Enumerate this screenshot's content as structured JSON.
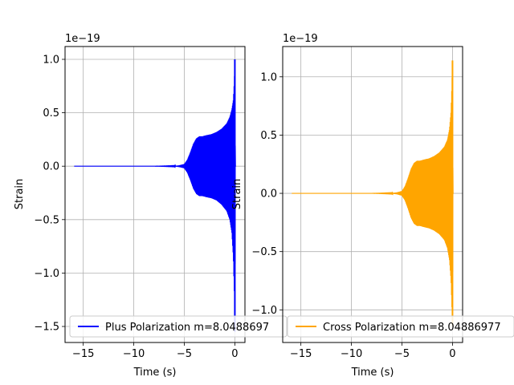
{
  "chart_data": [
    {
      "type": "line",
      "title": "",
      "xlabel": "Time (s)",
      "ylabel": "Strain",
      "offset_text": "1e−19",
      "xlim": [
        -16.8,
        1.0
      ],
      "ylim": [
        -1.65,
        1.12
      ],
      "xticks": [
        -15,
        -10,
        -5,
        0
      ],
      "xtick_labels": [
        "−15",
        "−10",
        "−5",
        "0"
      ],
      "yticks": [
        -1.5,
        -1.0,
        -0.5,
        0.0,
        0.5,
        1.0
      ],
      "ytick_labels": [
        "−1.5",
        "−1.0",
        "−0.5",
        "0.0",
        "0.5",
        "1.0"
      ],
      "grid": true,
      "legend_position": "lower-left",
      "series": [
        {
          "name": "Plus Polarization m=8.0488697",
          "color": "#0000ff",
          "envelope_t": [
            -15.9,
            -8.0,
            -6.0,
            -5.5,
            -5.0,
            -4.7,
            -4.4,
            -4.1,
            -3.8,
            -3.5,
            -3.2,
            -2.8,
            -2.3,
            -1.8,
            -1.3,
            -0.8,
            -0.5,
            -0.3,
            -0.15,
            -0.05,
            0.0,
            0.05,
            0.1
          ],
          "envelope_upper": [
            0.0,
            0.0,
            0.002,
            0.008,
            0.02,
            0.06,
            0.13,
            0.21,
            0.26,
            0.28,
            0.28,
            0.29,
            0.3,
            0.32,
            0.35,
            0.4,
            0.46,
            0.53,
            0.62,
            0.8,
            1.0,
            0.0,
            0.0
          ],
          "envelope_lower": [
            0.0,
            0.0,
            -0.002,
            -0.008,
            -0.02,
            -0.06,
            -0.13,
            -0.21,
            -0.26,
            -0.28,
            -0.28,
            -0.29,
            -0.3,
            -0.32,
            -0.36,
            -0.42,
            -0.5,
            -0.62,
            -0.85,
            -1.2,
            -1.55,
            0.0,
            0.0
          ]
        }
      ]
    },
    {
      "type": "line",
      "title": "",
      "xlabel": "Time (s)",
      "ylabel": "Strain",
      "offset_text": "1e−19",
      "xlim": [
        -16.8,
        1.0
      ],
      "ylim": [
        -1.28,
        1.26
      ],
      "xticks": [
        -15,
        -10,
        -5,
        0
      ],
      "xtick_labels": [
        "−15",
        "−10",
        "−5",
        "0"
      ],
      "yticks": [
        -1.0,
        -0.5,
        0.0,
        0.5,
        1.0
      ],
      "ytick_labels": [
        "−1.0",
        "−0.5",
        "0.0",
        "0.5",
        "1.0"
      ],
      "grid": true,
      "legend_position": "lower-left",
      "series": [
        {
          "name": "Cross Polarization m=8.04886977",
          "color": "#ffa500",
          "envelope_t": [
            -15.9,
            -8.0,
            -6.0,
            -5.5,
            -5.0,
            -4.7,
            -4.4,
            -4.1,
            -3.8,
            -3.5,
            -3.2,
            -2.8,
            -2.3,
            -1.8,
            -1.3,
            -0.8,
            -0.5,
            -0.3,
            -0.15,
            -0.05,
            0.0,
            0.05,
            0.1
          ],
          "envelope_upper": [
            0.0,
            0.0,
            0.002,
            0.008,
            0.02,
            0.06,
            0.13,
            0.21,
            0.26,
            0.28,
            0.28,
            0.29,
            0.3,
            0.32,
            0.35,
            0.4,
            0.46,
            0.55,
            0.7,
            0.95,
            1.14,
            0.0,
            0.0
          ],
          "envelope_lower": [
            0.0,
            0.0,
            -0.002,
            -0.008,
            -0.02,
            -0.06,
            -0.13,
            -0.21,
            -0.26,
            -0.28,
            -0.28,
            -0.29,
            -0.3,
            -0.32,
            -0.35,
            -0.4,
            -0.47,
            -0.57,
            -0.74,
            -1.0,
            -1.14,
            0.0,
            0.0
          ]
        }
      ]
    }
  ]
}
